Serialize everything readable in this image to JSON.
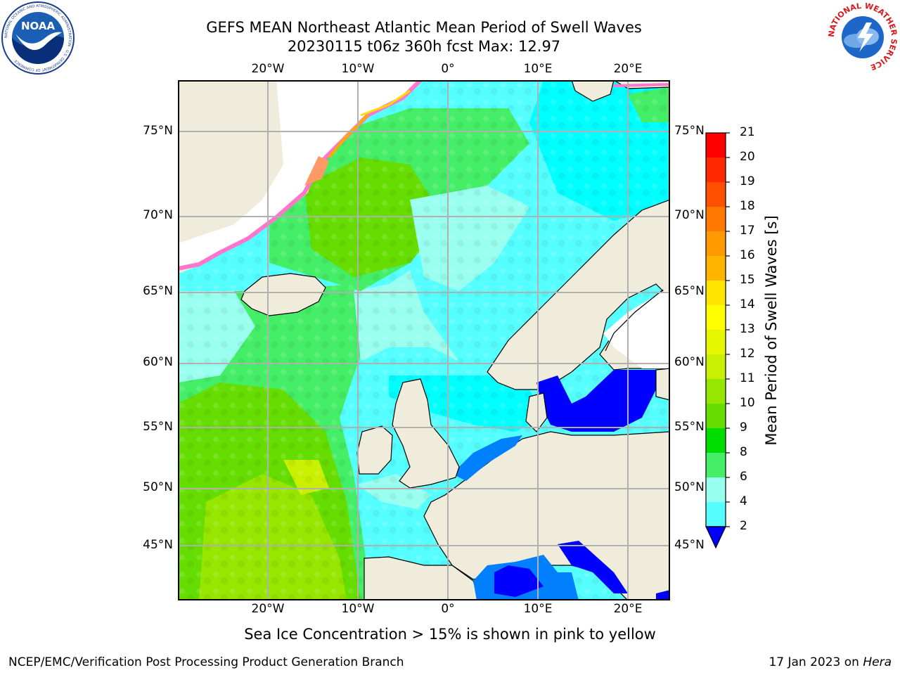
{
  "header": {
    "title_line1": "GEFS MEAN Northeast Atlantic Mean Period of Swell Waves",
    "title_line2": "20230115 t06z 360h fcst   Max: 12.97"
  },
  "logos": {
    "noaa_text": "NOAA",
    "noaa_ring_text": "NATIONAL OCEANIC AND ATMOSPHERIC ADMINISTRATION · U.S. DEPARTMENT OF COMMERCE",
    "nws_ring_text": "NATIONAL WEATHER SERVICE"
  },
  "map": {
    "lon_labels": [
      "20°W",
      "10°W",
      "0°",
      "10°E",
      "20°E"
    ],
    "lat_labels": [
      "75°N",
      "70°N",
      "65°N",
      "60°N",
      "55°N",
      "50°N",
      "45°N"
    ],
    "colors": {
      "land": "#efecdc",
      "ice_free_white": "#ffffff",
      "grid": "#b0b0b0",
      "coast": "#000000"
    }
  },
  "colorbar": {
    "title": "Mean Period of Swell Waves [s]",
    "ticks": [
      "21",
      "20",
      "19",
      "18",
      "17",
      "16",
      "15",
      "14",
      "13",
      "12",
      "11",
      "10",
      "9",
      "8",
      "6",
      "4",
      "2"
    ],
    "colors_top_to_bottom": [
      "#ff0000",
      "#ff2800",
      "#ff5000",
      "#ff7800",
      "#ff9900",
      "#ffb400",
      "#ffe600",
      "#ffff00",
      "#e6f500",
      "#c8f000",
      "#96e600",
      "#66dd00",
      "#00dd00",
      "#44ee66",
      "#99ffee",
      "#55ffff",
      "#00ffff",
      "#0080ff"
    ]
  },
  "footer": {
    "note": "Sea Ice Concentration > 15% is shown in pink to yellow",
    "credit": "NCEP/EMC/Verification Post Processing Product Generation Branch",
    "date": "17 Jan 2023 on",
    "machine": "Hera"
  }
}
